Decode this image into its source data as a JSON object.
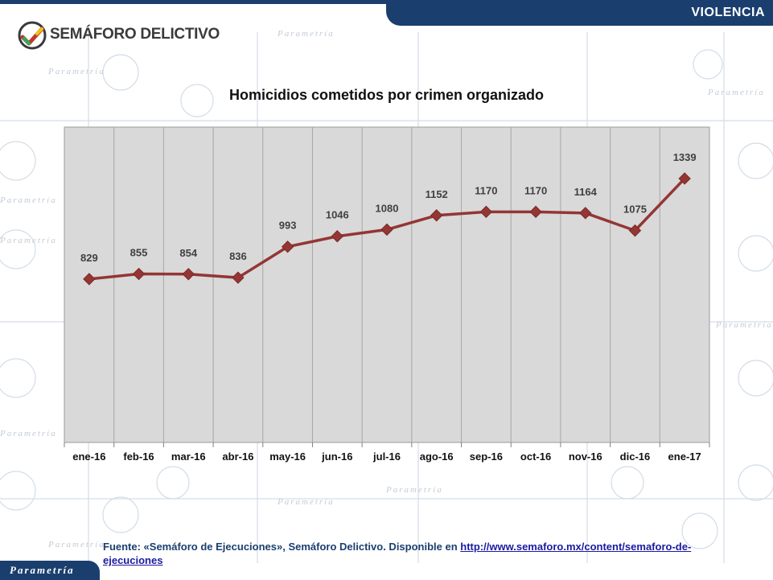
{
  "header": {
    "section_label": "VIOLENCIA"
  },
  "logo": {
    "text": "SEMÁFORO DELICTIVO"
  },
  "footer": {
    "source_prefix": "Fuente: «Semáforo de Ejecuciones», Semáforo Delictivo. Disponible en ",
    "source_link": "http://www.semaforo.mx/content/semaforo-de-ejecuciones",
    "brand": "Parametría"
  },
  "background": {
    "watermark_text": "Parametría"
  },
  "colors": {
    "brand_navy": "#1a3f6f",
    "series_line": "#943634",
    "plot_area": "#d9d9d9"
  },
  "chart_data": {
    "type": "line",
    "title": "Homicidios cometidos por crimen organizado",
    "categories": [
      "ene-16",
      "feb-16",
      "mar-16",
      "abr-16",
      "may-16",
      "jun-16",
      "jul-16",
      "ago-16",
      "sep-16",
      "oct-16",
      "nov-16",
      "dic-16",
      "ene-17"
    ],
    "values": [
      829,
      855,
      854,
      836,
      993,
      1046,
      1080,
      1152,
      1170,
      1170,
      1164,
      1075,
      1339
    ],
    "ylim": [
      0,
      1600
    ],
    "grid": "vertical",
    "legend": "none",
    "marker": "diamond",
    "data_labels": true
  }
}
